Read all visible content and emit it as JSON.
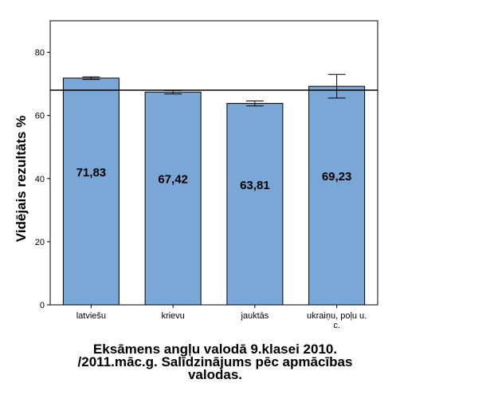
{
  "chart_data": {
    "type": "bar",
    "categories": [
      "latviešu",
      "krievu",
      "jauktās",
      "ukraiņu, poļu u. c."
    ],
    "category_label_lines": [
      [
        "latviešu"
      ],
      [
        "krievu"
      ],
      [
        "jauktās"
      ],
      [
        "ukraiņu, poļu u.",
        "c."
      ]
    ],
    "values": [
      71.83,
      67.42,
      63.81,
      69.23
    ],
    "value_labels": [
      "71,83",
      "67,42",
      "63,81",
      "69,23"
    ],
    "error_bars": [
      {
        "low": 71.4,
        "high": 72.2
      },
      {
        "low": 66.8,
        "high": 67.9
      },
      {
        "low": 63.0,
        "high": 64.6
      },
      {
        "low": 65.5,
        "high": 73.0
      }
    ],
    "reference_line": 68,
    "ylabel": "Vidējais rezultāts %",
    "xlabel_lines": [
      "Eksāmens angļu valodā 9.klasei 2010.",
      "/2011.māc.g. Salīdzinājums pēc apmācības",
      "valodas."
    ],
    "ylim": [
      0,
      90
    ],
    "yticks": [
      0,
      20,
      40,
      60,
      80
    ],
    "grid": false,
    "legend": "none",
    "colors": {
      "bar_fill": "#7ba7d6",
      "bar_stroke": "#000000",
      "axis": "#000000",
      "reference_line": "#000000",
      "background": "#ffffff"
    }
  }
}
